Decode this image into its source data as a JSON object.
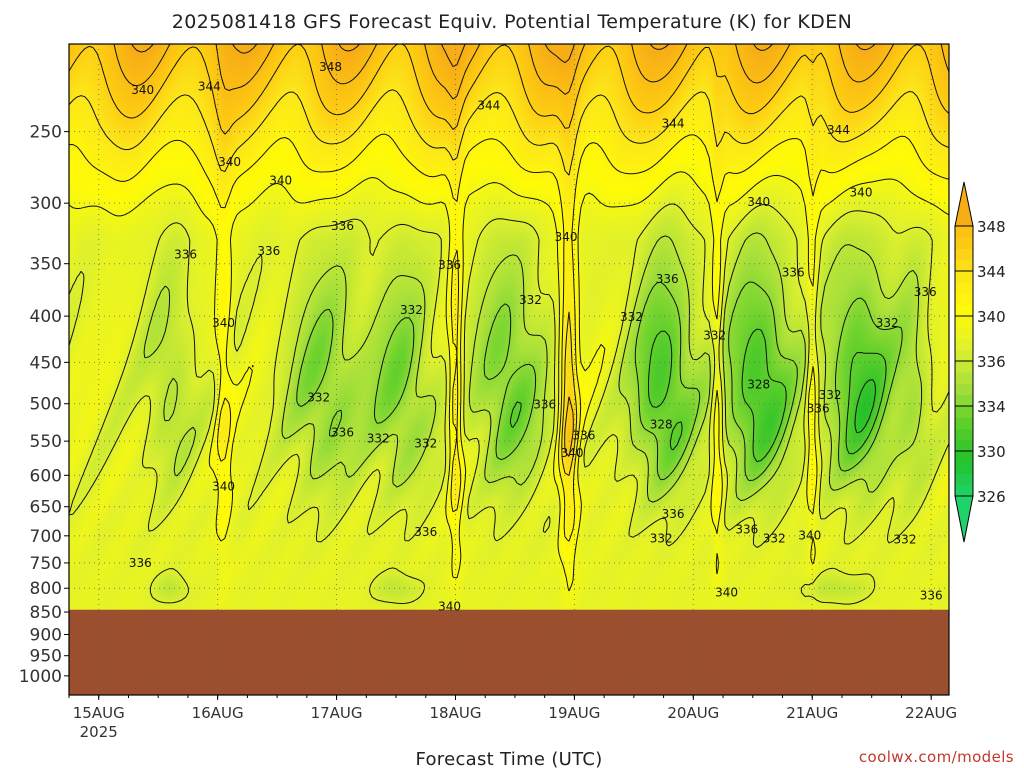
{
  "chart_data": {
    "type": "heatmap",
    "title": "2025081418 GFS Forecast Equiv. Potential Temperature (K) for KDEN",
    "xlabel": "Forecast Time (UTC)",
    "ylabel": "",
    "x_ticks": [
      "15AUG",
      "16AUG",
      "17AUG",
      "18AUG",
      "19AUG",
      "20AUG",
      "21AUG",
      "22AUG"
    ],
    "x_year": "2025",
    "x_range_days": [
      14.75,
      22.15
    ],
    "y_ticks": [
      250,
      300,
      350,
      400,
      450,
      500,
      550,
      600,
      650,
      700,
      750,
      800,
      850,
      900,
      950,
      1000
    ],
    "y_range_hpa": [
      200,
      1050
    ],
    "y_scale": "log-pressure",
    "surface_pressure_hpa": 845,
    "grid": "dotted",
    "colorbar": {
      "ticks": [
        326,
        330,
        334,
        336,
        340,
        344,
        348
      ],
      "colors": [
        "#1fd36a",
        "#25c22a",
        "#60cf2b",
        "#a8e03a",
        "#e9f02a",
        "#fffb07",
        "#fce71a",
        "#fdca12",
        "#f7ad16"
      ],
      "extend": "both"
    },
    "contour_labels": [
      {
        "text": "348",
        "t": 16.95,
        "p": 212
      },
      {
        "text": "344",
        "t": 15.93,
        "p": 223
      },
      {
        "text": "340",
        "t": 15.37,
        "p": 225
      },
      {
        "text": "344",
        "t": 18.28,
        "p": 234
      },
      {
        "text": "344",
        "t": 19.83,
        "p": 245
      },
      {
        "text": "344",
        "t": 21.22,
        "p": 249
      },
      {
        "text": "340",
        "t": 16.1,
        "p": 270
      },
      {
        "text": "340",
        "t": 16.53,
        "p": 283
      },
      {
        "text": "340",
        "t": 20.55,
        "p": 299
      },
      {
        "text": "340",
        "t": 21.41,
        "p": 292
      },
      {
        "text": "336",
        "t": 17.05,
        "p": 318
      },
      {
        "text": "340",
        "t": 18.93,
        "p": 327
      },
      {
        "text": "336",
        "t": 15.73,
        "p": 342
      },
      {
        "text": "336",
        "t": 16.43,
        "p": 339
      },
      {
        "text": "336",
        "t": 17.95,
        "p": 351
      },
      {
        "text": "336",
        "t": 20.84,
        "p": 358
      },
      {
        "text": "336",
        "t": 19.78,
        "p": 364
      },
      {
        "text": "336",
        "t": 21.95,
        "p": 376
      },
      {
        "text": "332",
        "t": 18.63,
        "p": 384
      },
      {
        "text": "332",
        "t": 17.63,
        "p": 394
      },
      {
        "text": "332",
        "t": 19.48,
        "p": 401
      },
      {
        "text": "332",
        "t": 20.18,
        "p": 420
      },
      {
        "text": "332",
        "t": 21.63,
        "p": 407
      },
      {
        "text": "340",
        "t": 16.05,
        "p": 407
      },
      {
        "text": "328",
        "t": 20.55,
        "p": 476
      },
      {
        "text": "332",
        "t": 16.85,
        "p": 492
      },
      {
        "text": "332",
        "t": 21.15,
        "p": 489
      },
      {
        "text": "336",
        "t": 18.75,
        "p": 501
      },
      {
        "text": "336",
        "t": 21.05,
        "p": 506
      },
      {
        "text": "328",
        "t": 19.73,
        "p": 527
      },
      {
        "text": "336",
        "t": 17.05,
        "p": 538
      },
      {
        "text": "332",
        "t": 17.35,
        "p": 546
      },
      {
        "text": "336",
        "t": 19.08,
        "p": 542
      },
      {
        "text": "332",
        "t": 17.75,
        "p": 553
      },
      {
        "text": "340",
        "t": 18.98,
        "p": 567
      },
      {
        "text": "340",
        "t": 16.05,
        "p": 617
      },
      {
        "text": "336",
        "t": 19.83,
        "p": 662
      },
      {
        "text": "336",
        "t": 17.75,
        "p": 693
      },
      {
        "text": "336",
        "t": 20.45,
        "p": 689
      },
      {
        "text": "340",
        "t": 20.98,
        "p": 699
      },
      {
        "text": "332",
        "t": 19.73,
        "p": 705
      },
      {
        "text": "332",
        "t": 20.68,
        "p": 705
      },
      {
        "text": "332",
        "t": 21.78,
        "p": 707
      },
      {
        "text": "336",
        "t": 15.35,
        "p": 750
      },
      {
        "text": "340",
        "t": 20.28,
        "p": 809
      },
      {
        "text": "336",
        "t": 22.0,
        "p": 815
      },
      {
        "text": "340",
        "t": 17.95,
        "p": 838
      }
    ]
  },
  "credit": "coolwx.com/models"
}
